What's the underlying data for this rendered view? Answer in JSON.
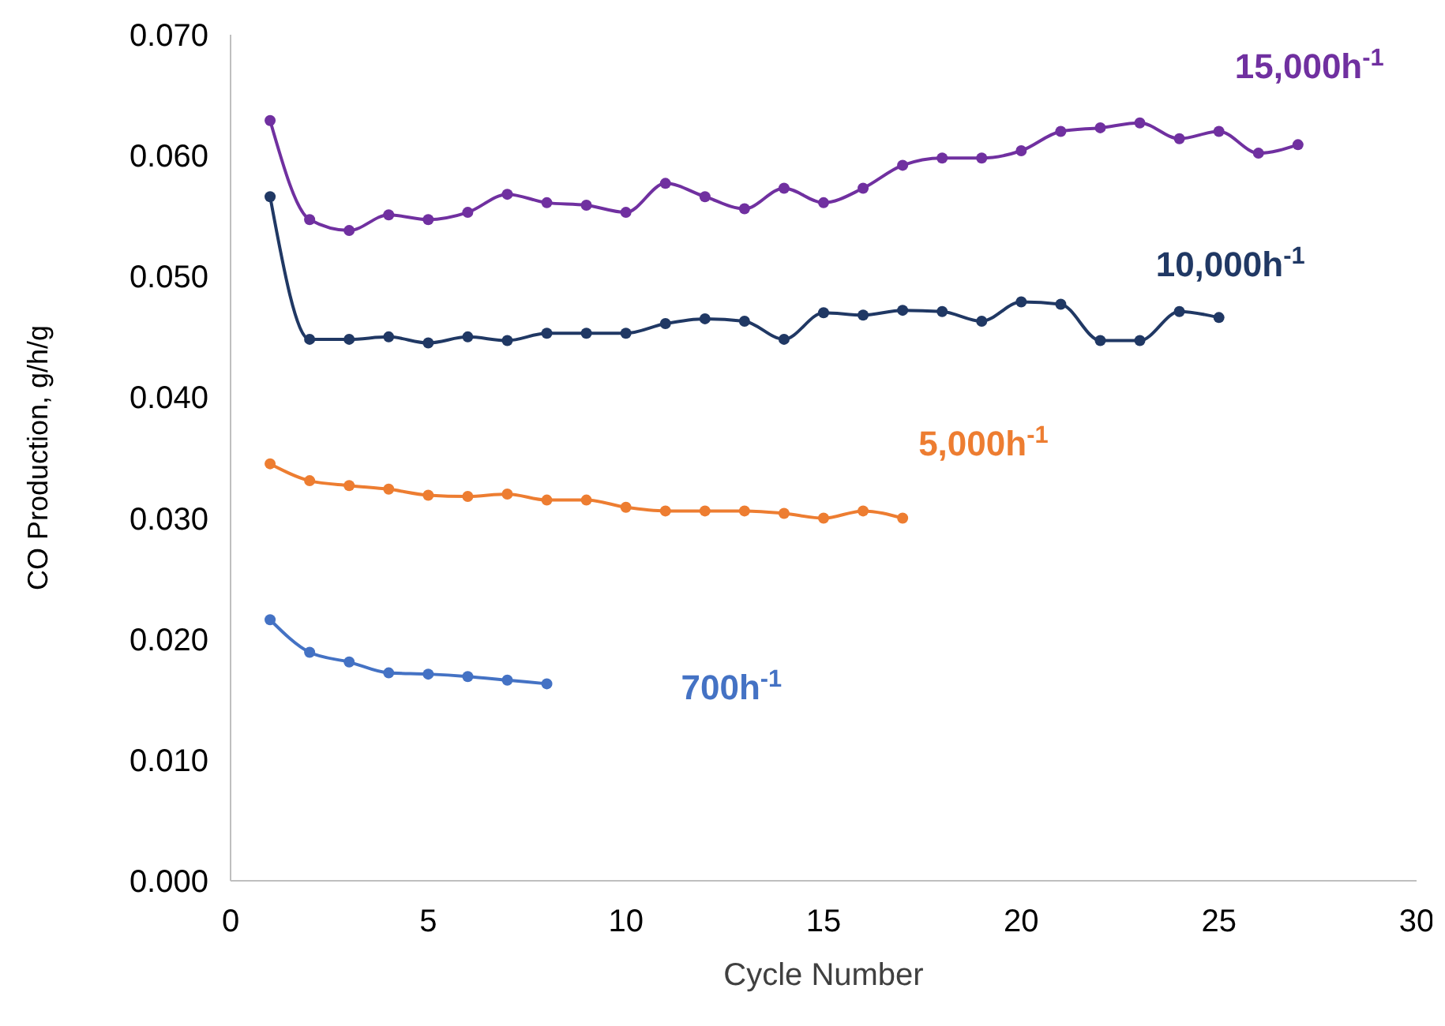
{
  "chart_data": {
    "type": "line",
    "xlabel": "Cycle Number",
    "ylabel": "CO Production, g/h/g",
    "xlim": [
      0,
      30
    ],
    "xticks": [
      0,
      5,
      10,
      15,
      20,
      25,
      30
    ],
    "ylim": [
      0,
      0.07
    ],
    "yticks": [
      {
        "value": 0,
        "label": "0.000"
      },
      {
        "value": 0.01,
        "label": "0.010"
      },
      {
        "value": 0.02,
        "label": "0.020"
      },
      {
        "value": 0.03,
        "label": "0.030"
      },
      {
        "value": 0.04,
        "label": "0.040"
      },
      {
        "value": 0.05,
        "label": "0.050"
      },
      {
        "value": 0.06,
        "label": "0.060"
      },
      {
        "value": 0.07,
        "label": "0.070"
      }
    ],
    "grid": false,
    "marker": "circle",
    "line_style": "solid",
    "series": [
      {
        "name": "15,000h$^{-1}$",
        "color": "#7030a0",
        "x": [
          1,
          2,
          3,
          4,
          5,
          6,
          7,
          8,
          9,
          10,
          11,
          12,
          13,
          14,
          15,
          16,
          17,
          18,
          19,
          20,
          21,
          22,
          23,
          24,
          25,
          26,
          27
        ],
        "values": [
          0.0629,
          0.0547,
          0.0538,
          0.0551,
          0.0547,
          0.0553,
          0.0568,
          0.0561,
          0.0559,
          0.0553,
          0.0577,
          0.0566,
          0.0556,
          0.0573,
          0.0561,
          0.0573,
          0.0592,
          0.0598,
          0.0598,
          0.0604,
          0.062,
          0.0623,
          0.0627,
          0.0614,
          0.062,
          0.0602,
          0.0609
        ]
      },
      {
        "name": "10,000h$^{-1}$",
        "color": "#203864",
        "x": [
          1,
          2,
          3,
          4,
          5,
          6,
          7,
          8,
          9,
          10,
          11,
          12,
          13,
          14,
          15,
          16,
          17,
          18,
          19,
          20,
          21,
          22,
          23,
          24,
          25
        ],
        "values": [
          0.0566,
          0.0448,
          0.0448,
          0.045,
          0.0445,
          0.045,
          0.0447,
          0.0453,
          0.0453,
          0.0453,
          0.0461,
          0.0465,
          0.0463,
          0.0448,
          0.047,
          0.0468,
          0.0472,
          0.0471,
          0.0463,
          0.0479,
          0.0477,
          0.0447,
          0.0447,
          0.0471,
          0.0466
        ]
      },
      {
        "name": "5,000h$^{-1}$",
        "color": "#ed7d31",
        "x": [
          1,
          2,
          3,
          4,
          5,
          6,
          7,
          8,
          9,
          10,
          11,
          12,
          13,
          14,
          15,
          16,
          17
        ],
        "values": [
          0.0345,
          0.0331,
          0.0327,
          0.0324,
          0.0319,
          0.0318,
          0.032,
          0.0315,
          0.0315,
          0.0309,
          0.0306,
          0.0306,
          0.0306,
          0.0304,
          0.03,
          0.0306,
          0.03
        ]
      },
      {
        "name": "700h$^{-1}$",
        "color": "#4472c4",
        "x": [
          1,
          2,
          3,
          4,
          5,
          6,
          7,
          8
        ],
        "values": [
          0.0216,
          0.0189,
          0.0181,
          0.0172,
          0.0171,
          0.0169,
          0.0166,
          0.0163
        ]
      }
    ]
  }
}
